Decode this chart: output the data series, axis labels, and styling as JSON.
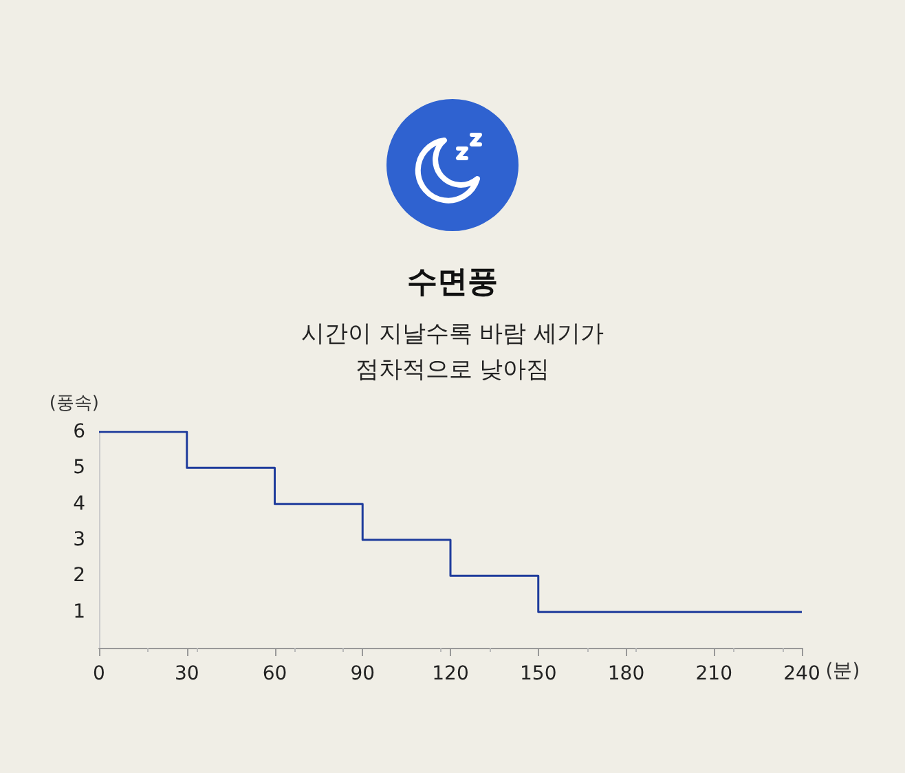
{
  "chart_data": {
    "type": "step",
    "title": "수면풍",
    "subtitle": "시간이 지날수록 바람 세기가\n점차적으로 낮아짐",
    "xlabel": "(분)",
    "ylabel": "(풍속)",
    "x": [
      0,
      30,
      60,
      90,
      120,
      150,
      240
    ],
    "series": [
      {
        "color": "#1f3c9c",
        "values": [
          6,
          5,
          4,
          3,
          2,
          1,
          1
        ]
      }
    ],
    "xlim": [
      0,
      240
    ],
    "xticks": [
      0,
      30,
      60,
      90,
      120,
      150,
      180,
      210,
      240
    ],
    "ylim": [
      0,
      6
    ],
    "yticks": [
      1,
      2,
      3,
      4,
      5,
      6
    ],
    "grid": false,
    "marker": "none",
    "line_style": "solid"
  }
}
